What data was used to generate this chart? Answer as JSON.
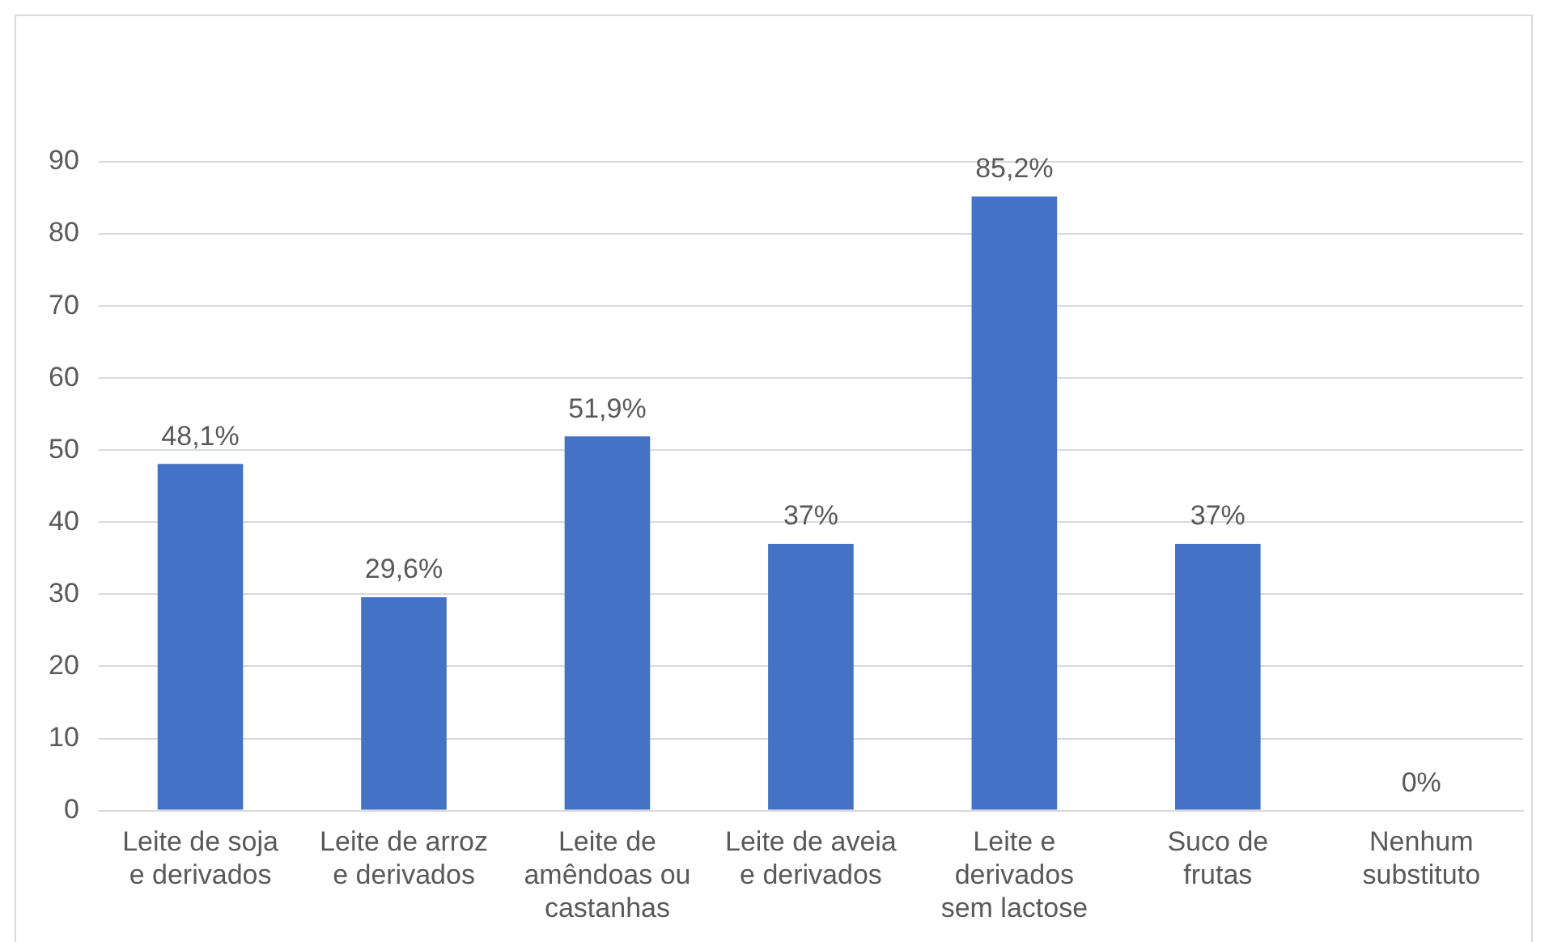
{
  "chart_data": {
    "type": "bar",
    "categories": [
      "Leite de soja e derivados",
      "Leite de arroz e derivados",
      "Leite de amêndoas ou castanhas",
      "Leite de aveia e derivados",
      "Leite e derivados sem lactose",
      "Suco de frutas",
      "Nenhum substituto"
    ],
    "values": [
      48.1,
      29.6,
      51.9,
      37,
      85.2,
      37,
      0
    ],
    "value_labels": [
      "48,1%",
      "29,6%",
      "51,9%",
      "37%",
      "85,2%",
      "37%",
      "0%"
    ],
    "color": "#4472c4",
    "ylim": [
      0,
      90
    ],
    "yticks": [
      0,
      10,
      20,
      30,
      40,
      50,
      60,
      70,
      80,
      90
    ],
    "grid": "y",
    "legend": false
  }
}
